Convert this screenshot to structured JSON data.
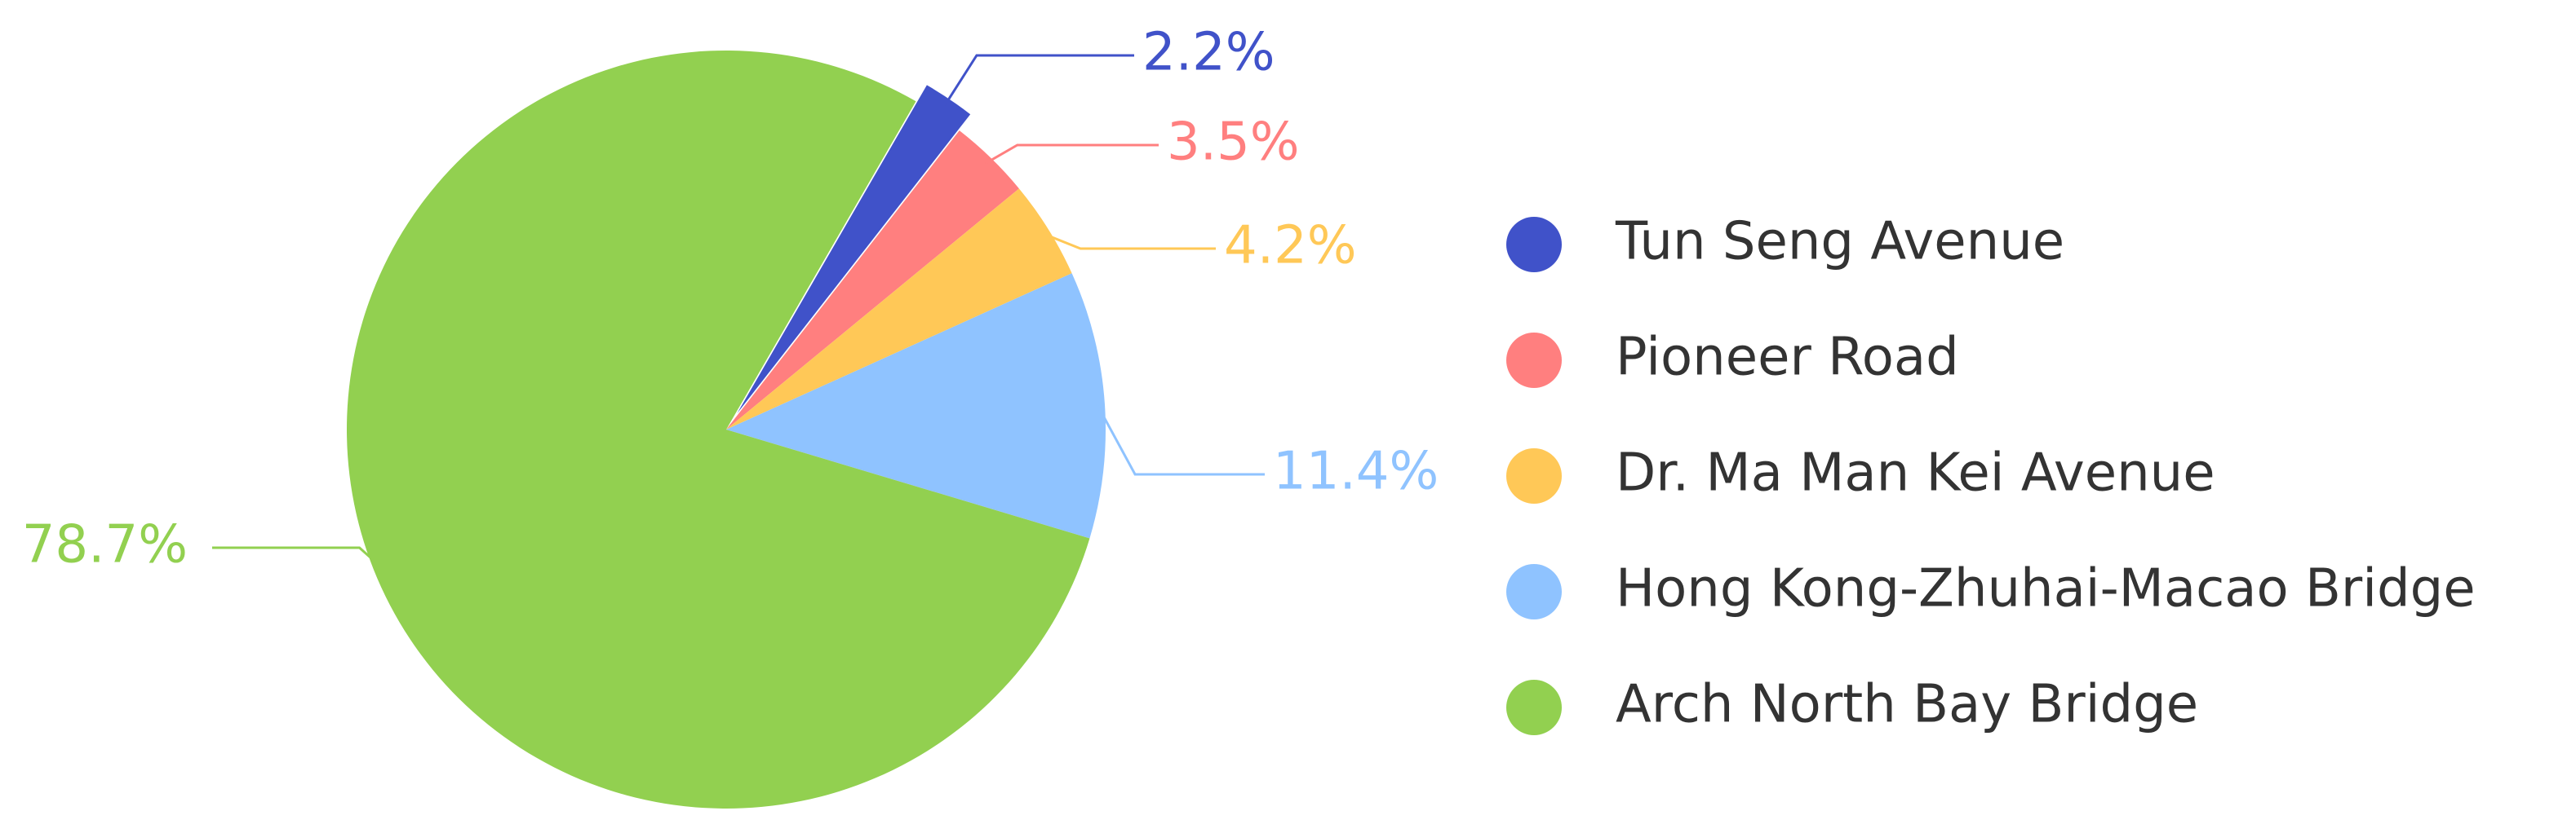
{
  "chart_data": {
    "type": "pie",
    "categories": [
      "Tun Seng Avenue",
      "Pioneer Road",
      "Dr. Ma Man Kei Avenue",
      "Hong Kong-Zhuhai-Macao Bridge",
      "Arch North Bay Bridge"
    ],
    "values": [
      2.2,
      3.5,
      4.2,
      11.4,
      78.7
    ],
    "labels": [
      "2.2%",
      "3.5%",
      "4.2%",
      "11.4%",
      "78.7%"
    ],
    "colors": [
      "#4052c9",
      "#ff7f7f",
      "#ffc857",
      "#8fc3ff",
      "#92d050"
    ],
    "highlighted": "Tun Seng Avenue",
    "legend_position": "right",
    "title": "",
    "start_angle_deg": 30,
    "direction": "clockwise"
  }
}
